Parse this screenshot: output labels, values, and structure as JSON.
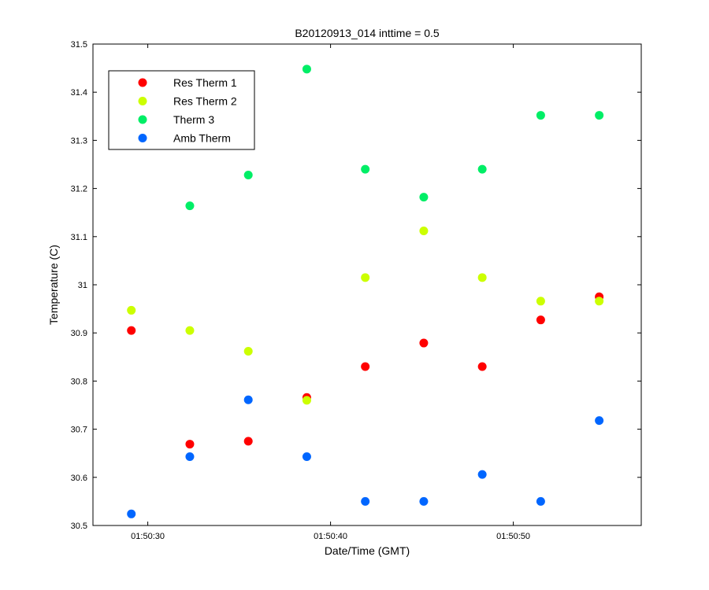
{
  "chart_data": {
    "type": "scatter",
    "title": "B20120913_014 inttime = 0.5",
    "xlabel": "Date/Time (GMT)",
    "ylabel": "Temperature (C)",
    "x_unit": "time",
    "xlim": [
      "01:50:27",
      "01:50:57"
    ],
    "ylim": [
      30.5,
      31.5
    ],
    "x_ticks": [
      "01:50:30",
      "01:50:40",
      "01:50:50"
    ],
    "y_ticks": [
      "30.5",
      "30.6",
      "30.7",
      "30.8",
      "30.9",
      "31",
      "31.1",
      "31.2",
      "31.3",
      "31.4",
      "31.5"
    ],
    "grid": false,
    "legend_position": "top-left",
    "x": [
      "01:50:29.1",
      "01:50:32.3",
      "01:50:35.5",
      "01:50:38.7",
      "01:50:41.9",
      "01:50:45.1",
      "01:50:48.3",
      "01:50:51.5",
      "01:50:54.7"
    ],
    "series": [
      {
        "name": "Res Therm 1",
        "color": "#ff0000",
        "values": [
          30.905,
          30.669,
          30.675,
          30.766,
          30.83,
          30.879,
          30.83,
          30.927,
          30.975
        ]
      },
      {
        "name": "Res Therm 2",
        "color": "#ccff00",
        "values": [
          30.947,
          30.905,
          30.862,
          30.76,
          31.015,
          31.112,
          31.015,
          30.966,
          30.966
        ]
      },
      {
        "name": "Therm 3",
        "color": "#00ee66",
        "values": [
          null,
          31.164,
          31.228,
          31.448,
          31.24,
          31.182,
          31.24,
          31.352,
          31.352
        ]
      },
      {
        "name": "Amb Therm",
        "color": "#0066ff",
        "values": [
          30.524,
          30.643,
          30.761,
          30.643,
          30.55,
          30.55,
          30.606,
          30.55,
          30.718
        ]
      }
    ]
  }
}
